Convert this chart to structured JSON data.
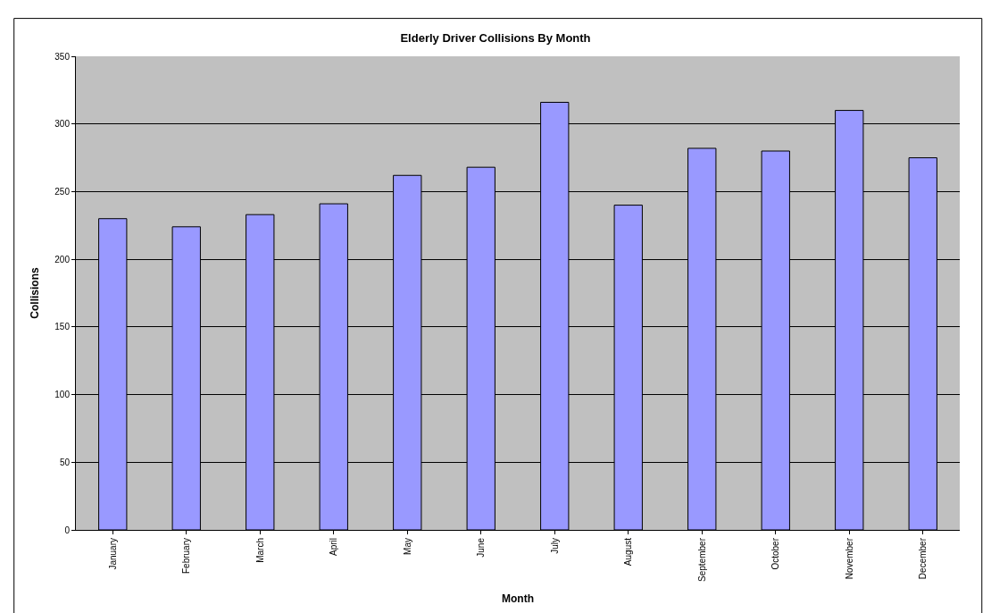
{
  "chart_data": {
    "type": "bar",
    "title": "Elderly Driver Collisions By Month",
    "xlabel": "Month",
    "ylabel": "Collisions",
    "categories": [
      "January",
      "February",
      "March",
      "April",
      "May",
      "June",
      "July",
      "August",
      "September",
      "October",
      "November",
      "December"
    ],
    "values": [
      230,
      224,
      233,
      241,
      262,
      268,
      316,
      240,
      282,
      280,
      310,
      275
    ],
    "color": "#9999ff",
    "ylim": [
      0,
      350
    ],
    "yticks": [
      0,
      50,
      100,
      150,
      200,
      250,
      300,
      350
    ],
    "grid": "y"
  }
}
